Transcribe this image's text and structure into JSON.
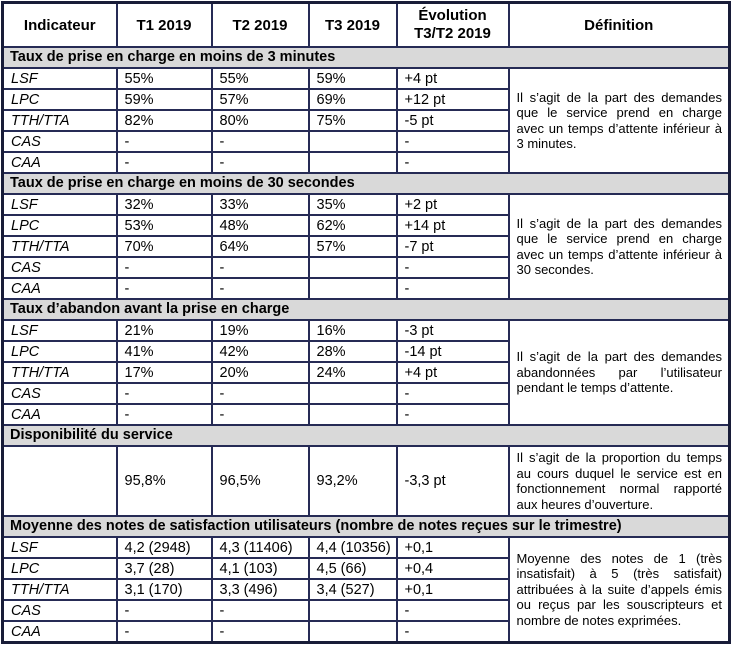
{
  "table": {
    "header": {
      "indicator": "Indicateur",
      "t1": "T1 2019",
      "t2": "T2 2019",
      "t3": "T3 2019",
      "evolution_line1": "Évolution",
      "evolution_line2": "T3/T2 2019",
      "definition": "Définition"
    },
    "sections": [
      {
        "title": "Taux de prise en charge en moins de 3 minutes",
        "definition": "Il s’agit de la part des demandes que le service prend en charge avec un temps d’attente inférieur à 3 minutes.",
        "rows": [
          {
            "label": "LSF",
            "t1": "55%",
            "t2": "55%",
            "t3": "59%",
            "evo": "+4 pt"
          },
          {
            "label": "LPC",
            "t1": "59%",
            "t2": "57%",
            "t3": "69%",
            "evo": "+12 pt"
          },
          {
            "label": "TTH/TTA",
            "t1": "82%",
            "t2": "80%",
            "t3": "75%",
            "evo": "-5 pt"
          },
          {
            "label": "CAS",
            "t1": "-",
            "t2": "-",
            "t3": "",
            "evo": "-"
          },
          {
            "label": "CAA",
            "t1": "-",
            "t2": "-",
            "t3": "",
            "evo": "-"
          }
        ]
      },
      {
        "title": "Taux de prise en charge en moins de 30 secondes",
        "definition": "Il s’agit de la part des demandes que le service prend en charge avec un temps d’attente inférieur à 30 secondes.",
        "rows": [
          {
            "label": "LSF",
            "t1": "32%",
            "t2": "33%",
            "t3": "35%",
            "evo": "+2 pt"
          },
          {
            "label": "LPC",
            "t1": "53%",
            "t2": "48%",
            "t3": "62%",
            "evo": "+14 pt"
          },
          {
            "label": "TTH/TTA",
            "t1": "70%",
            "t2": "64%",
            "t3": "57%",
            "evo": "-7 pt"
          },
          {
            "label": "CAS",
            "t1": "-",
            "t2": "-",
            "t3": "",
            "evo": "-"
          },
          {
            "label": "CAA",
            "t1": "-",
            "t2": "-",
            "t3": "",
            "evo": "-"
          }
        ]
      },
      {
        "title": "Taux d’abandon avant la prise en charge",
        "definition": "Il s’agit de la part des demandes abandonnées par l’utilisateur pendant le temps d’attente.",
        "rows": [
          {
            "label": "LSF",
            "t1": "21%",
            "t2": "19%",
            "t3": "16%",
            "evo": "-3 pt"
          },
          {
            "label": "LPC",
            "t1": "41%",
            "t2": "42%",
            "t3": "28%",
            "evo": "-14 pt"
          },
          {
            "label": "TTH/TTA",
            "t1": "17%",
            "t2": "20%",
            "t3": "24%",
            "evo": "+4 pt"
          },
          {
            "label": "CAS",
            "t1": "-",
            "t2": "-",
            "t3": "",
            "evo": "-"
          },
          {
            "label": "CAA",
            "t1": "-",
            "t2": "-",
            "t3": "",
            "evo": "-"
          }
        ]
      },
      {
        "title": "Disponibilité du service",
        "definition": "Il s’agit de la proportion du temps au cours duquel le service est en fonctionnement normal rapporté aux heures d’ouverture.",
        "rows": [
          {
            "label": "",
            "t1": "95,8%",
            "t2": "96,5%",
            "t3": "93,2%",
            "evo": "-3,3 pt"
          }
        ]
      },
      {
        "title": "Moyenne des notes de satisfaction utilisateurs (nombre de notes reçues sur le trimestre)",
        "definition": "Moyenne des notes de 1 (très insatisfait) à 5 (très satisfait) attribuées à la suite d’appels émis ou reçus par les souscripteurs et nombre de notes exprimées.",
        "rows": [
          {
            "label": "LSF",
            "t1": "4,2 (2948)",
            "t2": "4,3 (11406)",
            "t3": "4,4 (10356)",
            "evo": "+0,1"
          },
          {
            "label": "LPC",
            "t1": "3,7 (28)",
            "t2": "4,1 (103)",
            "t3": "4,5 (66)",
            "evo": "+0,4"
          },
          {
            "label": "TTH/TTA",
            "t1": "3,1 (170)",
            "t2": "3,3 (496)",
            "t3": "3,4 (527)",
            "evo": "+0,1"
          },
          {
            "label": "CAS",
            "t1": "-",
            "t2": "-",
            "t3": "",
            "evo": "-"
          },
          {
            "label": "CAA",
            "t1": "-",
            "t2": "-",
            "t3": "",
            "evo": "-"
          }
        ]
      }
    ]
  }
}
